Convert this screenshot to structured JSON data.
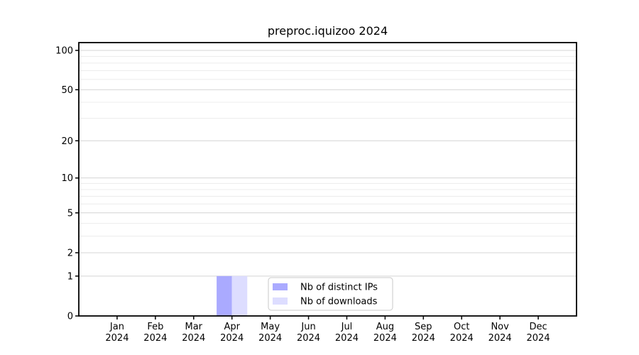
{
  "chart_data": {
    "type": "bar",
    "title": "preproc.iquizoo 2024",
    "categories": [
      {
        "month": "Jan",
        "year": "2024"
      },
      {
        "month": "Feb",
        "year": "2024"
      },
      {
        "month": "Mar",
        "year": "2024"
      },
      {
        "month": "Apr",
        "year": "2024"
      },
      {
        "month": "May",
        "year": "2024"
      },
      {
        "month": "Jun",
        "year": "2024"
      },
      {
        "month": "Jul",
        "year": "2024"
      },
      {
        "month": "Aug",
        "year": "2024"
      },
      {
        "month": "Sep",
        "year": "2024"
      },
      {
        "month": "Oct",
        "year": "2024"
      },
      {
        "month": "Nov",
        "year": "2024"
      },
      {
        "month": "Dec",
        "year": "2024"
      }
    ],
    "series": [
      {
        "name": "Nb of distinct IPs",
        "color": "#aaaaff",
        "values": [
          0,
          0,
          0,
          1,
          0,
          0,
          0,
          0,
          0,
          0,
          0,
          0
        ]
      },
      {
        "name": "Nb of downloads",
        "color": "#ddddff",
        "values": [
          0,
          0,
          0,
          1,
          0,
          0,
          0,
          0,
          0,
          0,
          0,
          0
        ]
      }
    ],
    "y_axis": {
      "scale": "log1p",
      "major_ticks": [
        0,
        1,
        2,
        5,
        10,
        20,
        50,
        100
      ],
      "minor_ticks": [
        3,
        4,
        6,
        7,
        8,
        9,
        30,
        40,
        60,
        70,
        80,
        90
      ],
      "max": 100
    },
    "legend": {
      "entries": [
        "Nb of distinct IPs",
        "Nb of downloads"
      ],
      "position": "lower-center-inside"
    },
    "grid": true,
    "colors": {
      "major_grid": "#d4d4d4",
      "minor_grid": "#ececec",
      "axis": "#000000",
      "text": "#000000",
      "legend_border": "#c9c9c9",
      "background": "#ffffff"
    }
  }
}
